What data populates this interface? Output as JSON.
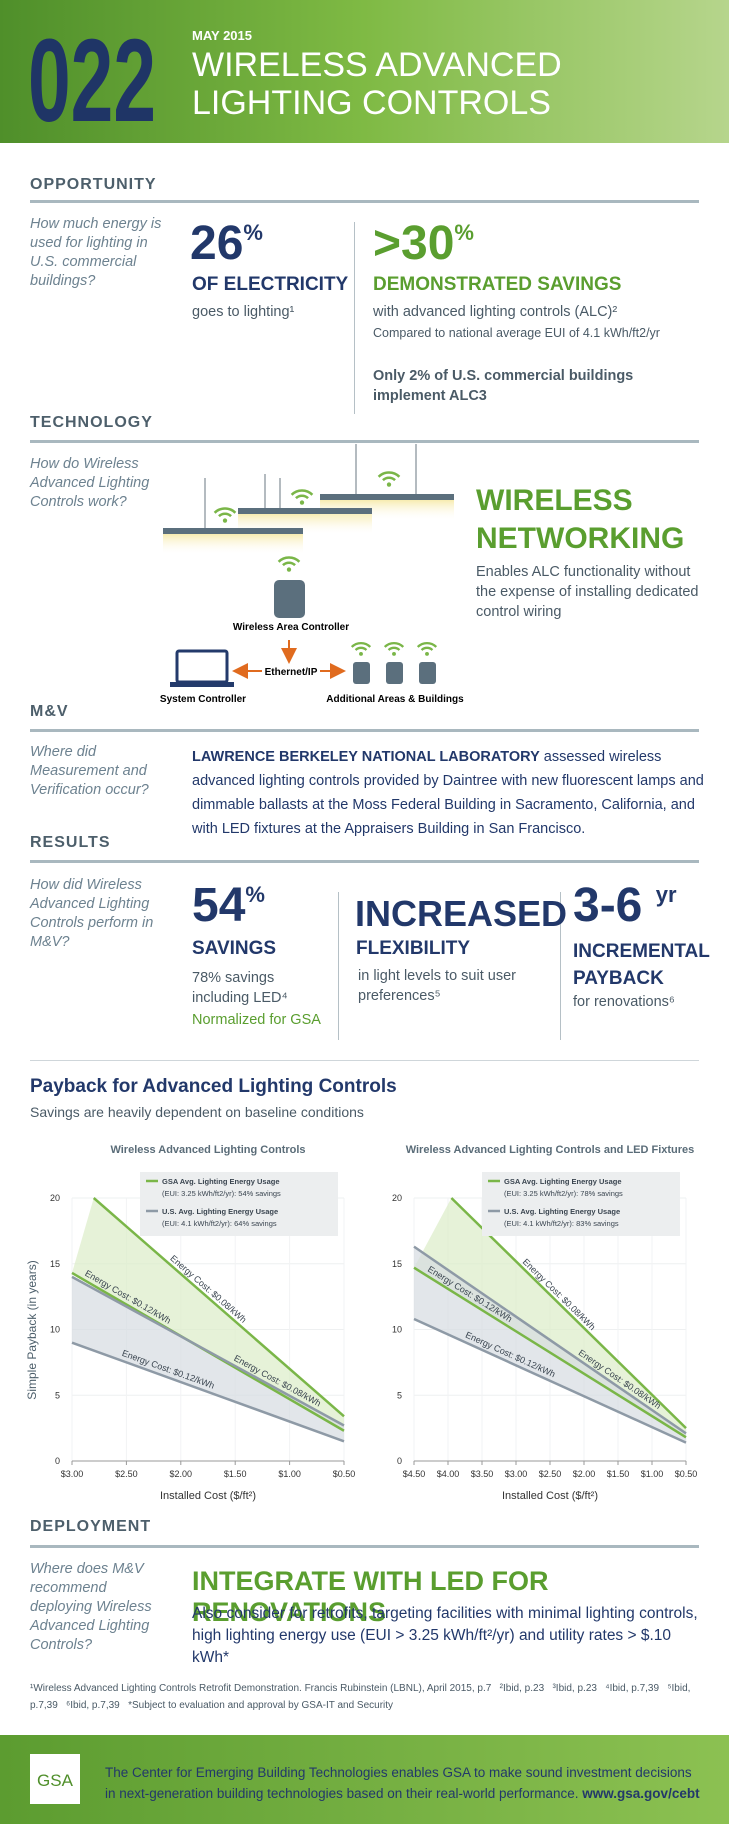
{
  "header": {
    "number": "022",
    "date": "MAY 2015",
    "title_line1": "WIRELESS ADVANCED",
    "title_line2": "LIGHTING CONTROLS"
  },
  "opportunity": {
    "heading": "OPPORTUNITY",
    "question": "How much energy is used for lighting in U.S. commercial buildings?",
    "stat1": {
      "value": "26",
      "unit": "%",
      "label": "OF ELECTRICITY",
      "text": "goes to lighting¹"
    },
    "stat2": {
      "prefix": ">",
      "value": "30",
      "unit": "%",
      "label": "DEMONSTRATED SAVINGS",
      "text": "with advanced lighting controls (ALC)²",
      "note": "Compared to national average EUI of 4.1 kWh/ft2/yr",
      "highlight": "Only 2% of U.S. commercial buildings implement ALC3"
    }
  },
  "technology": {
    "heading": "TECHNOLOGY",
    "question": "How do Wireless Advanced Lighting Controls work?",
    "diagram": {
      "controller": "Wireless Area Controller",
      "link": "Ethernet/IP",
      "system": "System Controller",
      "additional": "Additional Areas & Buildings"
    },
    "headline1": "WIRELESS",
    "headline2": "NETWORKING",
    "text": "Enables ALC functionality without the expense of installing dedicated control wiring"
  },
  "mv": {
    "heading": "M&V",
    "question": "Where did Measurement and Verification occur?",
    "organization": "LAWRENCE BERKELEY NATIONAL LABORATORY",
    "text": " assessed wireless advanced lighting controls  provided by Daintree with new fluorescent lamps and dimmable ballasts at the Moss Federal Building in Sacramento, California, and with LED fixtures at the Appraisers Building in San Francisco."
  },
  "results": {
    "heading": "RESULTS",
    "question": "How did Wireless Advanced Lighting Controls perform in M&V?",
    "stat1": {
      "value": "54",
      "unit": "%",
      "label": "SAVINGS",
      "text": "78% savings including LED⁴",
      "note": "Normalized for GSA"
    },
    "stat2": {
      "label": "INCREASED",
      "sublabel": "FLEXIBILITY",
      "text": "in light levels to suit user preferences⁵"
    },
    "stat3": {
      "value": "3-6",
      "unit": "yr",
      "label": "INCREMENTAL PAYBACK",
      "text": "for renovations⁶"
    }
  },
  "payback": {
    "title": "Payback for Advanced Lighting Controls",
    "subtitle": "Savings are heavily dependent on baseline conditions",
    "y_label": "Simple Payback (in years)",
    "x_label": "Installed Cost ($/ft²)",
    "charts": [
      {
        "type": "line",
        "title": "Wireless Advanced Lighting Controls",
        "xlim": [
          3,
          0.5
        ],
        "xticks": [
          {
            "value": 3,
            "label": "$3.00"
          },
          {
            "value": 2.5,
            "label": "$2.50"
          },
          {
            "value": 2,
            "label": "$2.00"
          },
          {
            "value": 1.5,
            "label": "$1.50"
          },
          {
            "value": 1,
            "label": "$1.00"
          },
          {
            "value": 0.5,
            "label": "$0.50"
          }
        ],
        "ylim": [
          0,
          20
        ],
        "yticks": [
          0,
          5,
          10,
          15,
          20
        ],
        "grid": true,
        "series": [
          {
            "name": "GSA Avg. Lighting Energy Usage",
            "note": "(EUI: 3.25 kWh/ft2/yr): 54% savings",
            "color": "#7ab648",
            "fill": "#dcedc8",
            "lines": [
              {
                "label": "Energy Cost: $0.08/kWh",
                "x": [
                  2.8,
                  0.5
                ],
                "y": [
                  20,
                  3.4
                ]
              },
              {
                "label": "Energy Cost: $0.12/kWh",
                "x": [
                  3,
                  0.5
                ],
                "y": [
                  14.3,
                  2.3
                ]
              }
            ]
          },
          {
            "name": "U.S. Avg. Lighting Energy Usage",
            "note": "(EUI: 4.1 kWh/ft2/yr): 64% savings",
            "color": "#8e9aa6",
            "fill": "#d5dbe1",
            "lines": [
              {
                "label": "Energy Cost: $0.08/kWh",
                "x": [
                  3,
                  0.5
                ],
                "y": [
                  14,
                  2.7
                ]
              },
              {
                "label": "Energy Cost: $0.12/kWh",
                "x": [
                  3,
                  0.5
                ],
                "y": [
                  9,
                  1.5
                ]
              }
            ]
          }
        ]
      },
      {
        "type": "line",
        "title": "Wireless Advanced Lighting Controls and LED Fixtures",
        "xlim": [
          4.5,
          0.5
        ],
        "xticks": [
          {
            "value": 4.5,
            "label": "$4.50"
          },
          {
            "value": 4,
            "label": "$4.00"
          },
          {
            "value": 3.5,
            "label": "$3.50"
          },
          {
            "value": 3,
            "label": "$3.00"
          },
          {
            "value": 2.5,
            "label": "$2.50"
          },
          {
            "value": 2,
            "label": "$2.00"
          },
          {
            "value": 1.5,
            "label": "$1.50"
          },
          {
            "value": 1,
            "label": "$1.00"
          },
          {
            "value": 0.5,
            "label": "$0.50"
          }
        ],
        "ylim": [
          0,
          20
        ],
        "yticks": [
          0,
          5,
          10,
          15,
          20
        ],
        "grid": true,
        "series": [
          {
            "name": "GSA Avg. Lighting Energy Usage",
            "note": "(EUI: 3.25 kWh/ft2/yr): 78% savings",
            "color": "#7ab648",
            "fill": "#dcedc8",
            "lines": [
              {
                "label": "Energy Cost: $0.08/kWh",
                "x": [
                  3.95,
                  0.5
                ],
                "y": [
                  20,
                  2.5
                ]
              },
              {
                "label": "Energy Cost: $0.12/kWh",
                "x": [
                  4.5,
                  0.5
                ],
                "y": [
                  14.7,
                  1.8
                ]
              }
            ]
          },
          {
            "name": "U.S. Avg. Lighting Energy Usage",
            "note": "(EUI: 4.1 kWh/ft2/yr): 83% savings",
            "color": "#8e9aa6",
            "fill": "#d5dbe1",
            "lines": [
              {
                "label": "Energy Cost: $0.08/kWh",
                "x": [
                  4.5,
                  0.5
                ],
                "y": [
                  16.3,
                  2.1
                ]
              },
              {
                "label": "Energy Cost: $0.12/kWh",
                "x": [
                  4.5,
                  0.5
                ],
                "y": [
                  10.8,
                  1.4
                ]
              }
            ]
          }
        ]
      }
    ]
  },
  "deployment": {
    "heading": "DEPLOYMENT",
    "question": "Where does M&V recommend deploying Wireless Advanced Lighting Controls?",
    "headline": "INTEGRATE WITH LED FOR RENOVATIONS",
    "text": "Also consider for retrofits, targeting facilities with minimal lighting controls, high lighting energy use (EUI > 3.25 kWh/ft²/yr) and utility rates > $.10 kWh*"
  },
  "footnotes": "¹Wireless Advanced Lighting Controls Retrofit Demonstration. Francis Rubinstein (LBNL), April 2015, p.7   ²Ibid, p.23   ³Ibid, p.23   ⁴Ibid, p.7,39   ⁵Ibid, p.7,39   ⁶Ibid, p.7,39   *Subject to evaluation and approval by GSA-IT and Security",
  "footer": {
    "logo": "GSA",
    "text": "The Center for Emerging Building Technologies enables GSA to make sound investment decisions in next-generation building technologies based on their real-world performance. ",
    "url": "www.gsa.gov/cebt"
  }
}
